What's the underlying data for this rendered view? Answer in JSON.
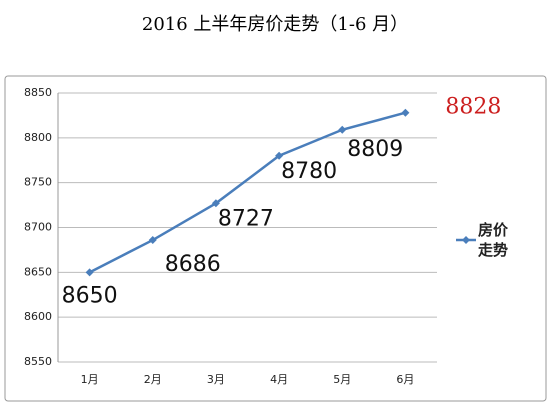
{
  "chart_data": {
    "type": "line",
    "title": "2016 上半年房价走势（1-6 月）",
    "categories": [
      "1月",
      "2月",
      "3月",
      "4月",
      "5月",
      "6月"
    ],
    "series": [
      {
        "name": "房价走势",
        "color": "#4a7ebb",
        "values": [
          8650,
          8686,
          8727,
          8780,
          8809,
          8828
        ]
      }
    ],
    "value_label_colors": [
      "#111111",
      "#111111",
      "#111111",
      "#111111",
      "#111111",
      "#cc1f1f"
    ],
    "ylim": [
      8550,
      8850
    ],
    "yticks": [
      8550,
      8600,
      8650,
      8700,
      8750,
      8800,
      8850
    ],
    "grid": true,
    "legend": "right"
  }
}
